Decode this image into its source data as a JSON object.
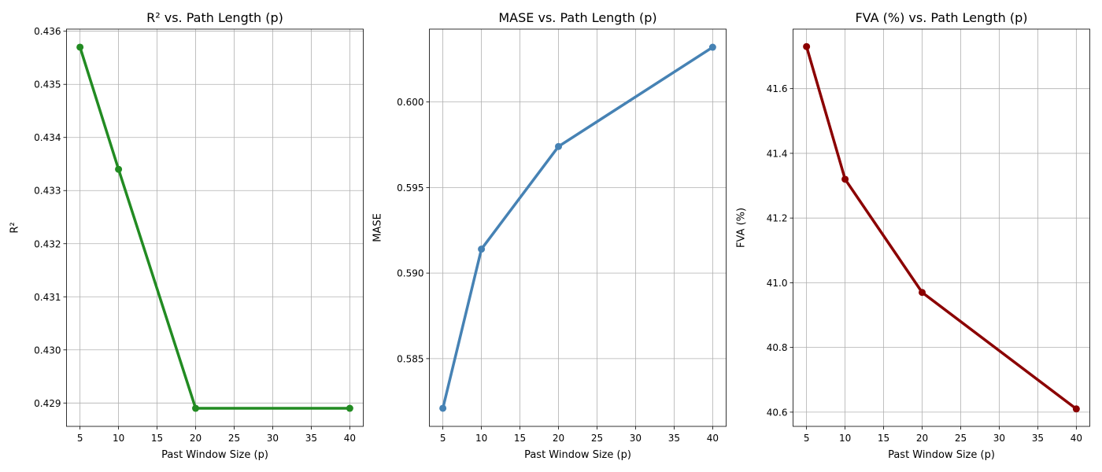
{
  "chart_data": [
    {
      "type": "line",
      "title": "R² vs. Path Length (p)",
      "xlabel": "Past Window Size (p)",
      "ylabel": "R²",
      "color": "#228b22",
      "grid": true,
      "x": [
        5,
        10,
        20,
        40
      ],
      "y": [
        0.4357,
        0.4334,
        0.4289,
        0.4289
      ],
      "xlim": [
        3.25,
        41.75
      ],
      "ylim": [
        0.42856,
        0.43604
      ],
      "xticks": [
        5,
        10,
        15,
        20,
        25,
        30,
        35,
        40
      ],
      "yticks": [
        0.429,
        0.43,
        0.431,
        0.432,
        0.433,
        0.434,
        0.435,
        0.436
      ],
      "xtick_labels": [
        "5",
        "10",
        "15",
        "20",
        "25",
        "30",
        "35",
        "40"
      ],
      "ytick_labels": [
        "0.429",
        "0.430",
        "0.431",
        "0.432",
        "0.433",
        "0.434",
        "0.435",
        "0.436"
      ]
    },
    {
      "type": "line",
      "title": "MASE vs. Path Length (p)",
      "xlabel": "Past Window Size (p)",
      "ylabel": "MASE",
      "color": "#4682b4",
      "grid": true,
      "x": [
        5,
        10,
        20,
        40
      ],
      "y": [
        0.5821,
        0.5914,
        0.5974,
        0.6032
      ],
      "xlim": [
        3.25,
        41.75
      ],
      "ylim": [
        0.58104,
        0.60426
      ],
      "xticks": [
        5,
        10,
        15,
        20,
        25,
        30,
        35,
        40
      ],
      "yticks": [
        0.585,
        0.59,
        0.595,
        0.6
      ],
      "xtick_labels": [
        "5",
        "10",
        "15",
        "20",
        "25",
        "30",
        "35",
        "40"
      ],
      "ytick_labels": [
        "0.585",
        "0.590",
        "0.595",
        "0.600"
      ]
    },
    {
      "type": "line",
      "title": "FVA (%) vs. Path Length (p)",
      "xlabel": "Past Window Size (p)",
      "ylabel": "FVA (%)",
      "color": "#8b0000",
      "grid": true,
      "x": [
        5,
        10,
        20,
        40
      ],
      "y": [
        41.73,
        41.32,
        40.97,
        40.61
      ],
      "xlim": [
        3.25,
        41.75
      ],
      "ylim": [
        40.556,
        41.784
      ],
      "xticks": [
        5,
        10,
        15,
        20,
        25,
        30,
        35,
        40
      ],
      "yticks": [
        40.6,
        40.8,
        41.0,
        41.2,
        41.4,
        41.6
      ],
      "xtick_labels": [
        "5",
        "10",
        "15",
        "20",
        "25",
        "30",
        "35",
        "40"
      ],
      "ytick_labels": [
        "40.6",
        "40.8",
        "41.0",
        "41.2",
        "41.4",
        "41.6"
      ]
    }
  ]
}
